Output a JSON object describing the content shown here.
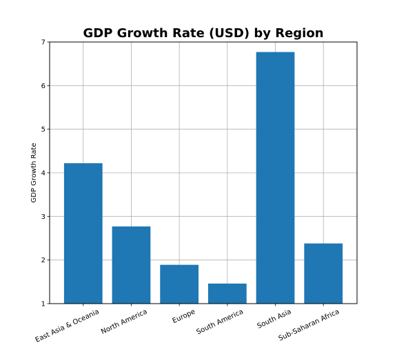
{
  "chart_data": {
    "type": "bar",
    "title": "GDP Growth Rate (USD) by Region",
    "xlabel": "",
    "ylabel": "GDP Growth Rate",
    "categories": [
      "East Asia & Oceania",
      "North America",
      "Europe",
      "South America",
      "South Asia",
      "Sub-Saharan Africa"
    ],
    "values": [
      4.22,
      2.77,
      1.89,
      1.46,
      6.77,
      2.38
    ],
    "ylim": [
      1,
      7
    ],
    "yticks": [
      1,
      2,
      3,
      4,
      5,
      6,
      7
    ],
    "grid": true,
    "bar_color": "#1f77b4",
    "x_tick_rotation": 25
  }
}
